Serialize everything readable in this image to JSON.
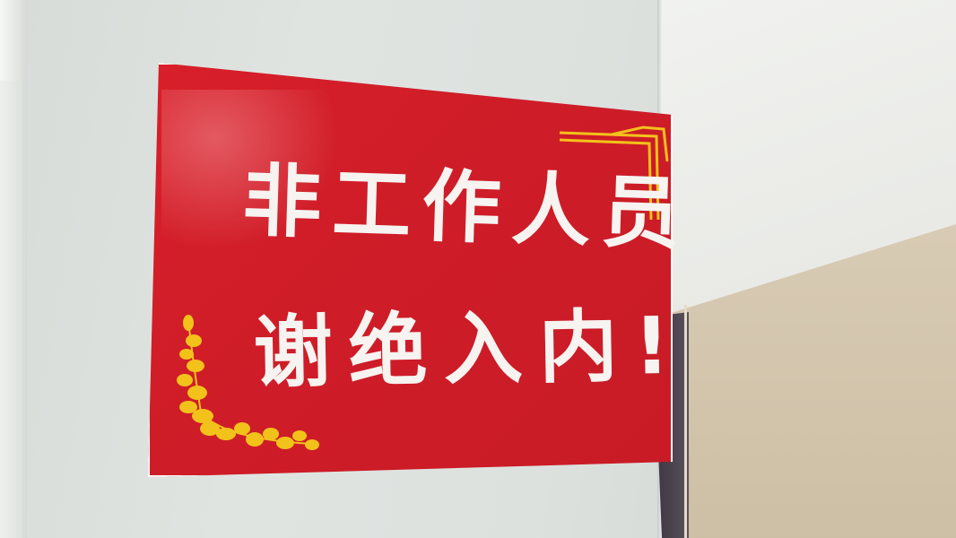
{
  "sign": {
    "line1": "非工作人员",
    "line2": "谢绝入内!"
  },
  "colors": {
    "sign_red": "#d21e29",
    "text_white": "#f6f3f0",
    "ornament_gold": "#f2c21b",
    "wall": "#dde1de",
    "door_panel": "#d2c4ab",
    "door_frame": "#4a4350"
  },
  "icons": {
    "top_right_ornament": "gold-corner-line-ornament",
    "bottom_left_ornament": "gold-leaf-vine-ornament"
  }
}
